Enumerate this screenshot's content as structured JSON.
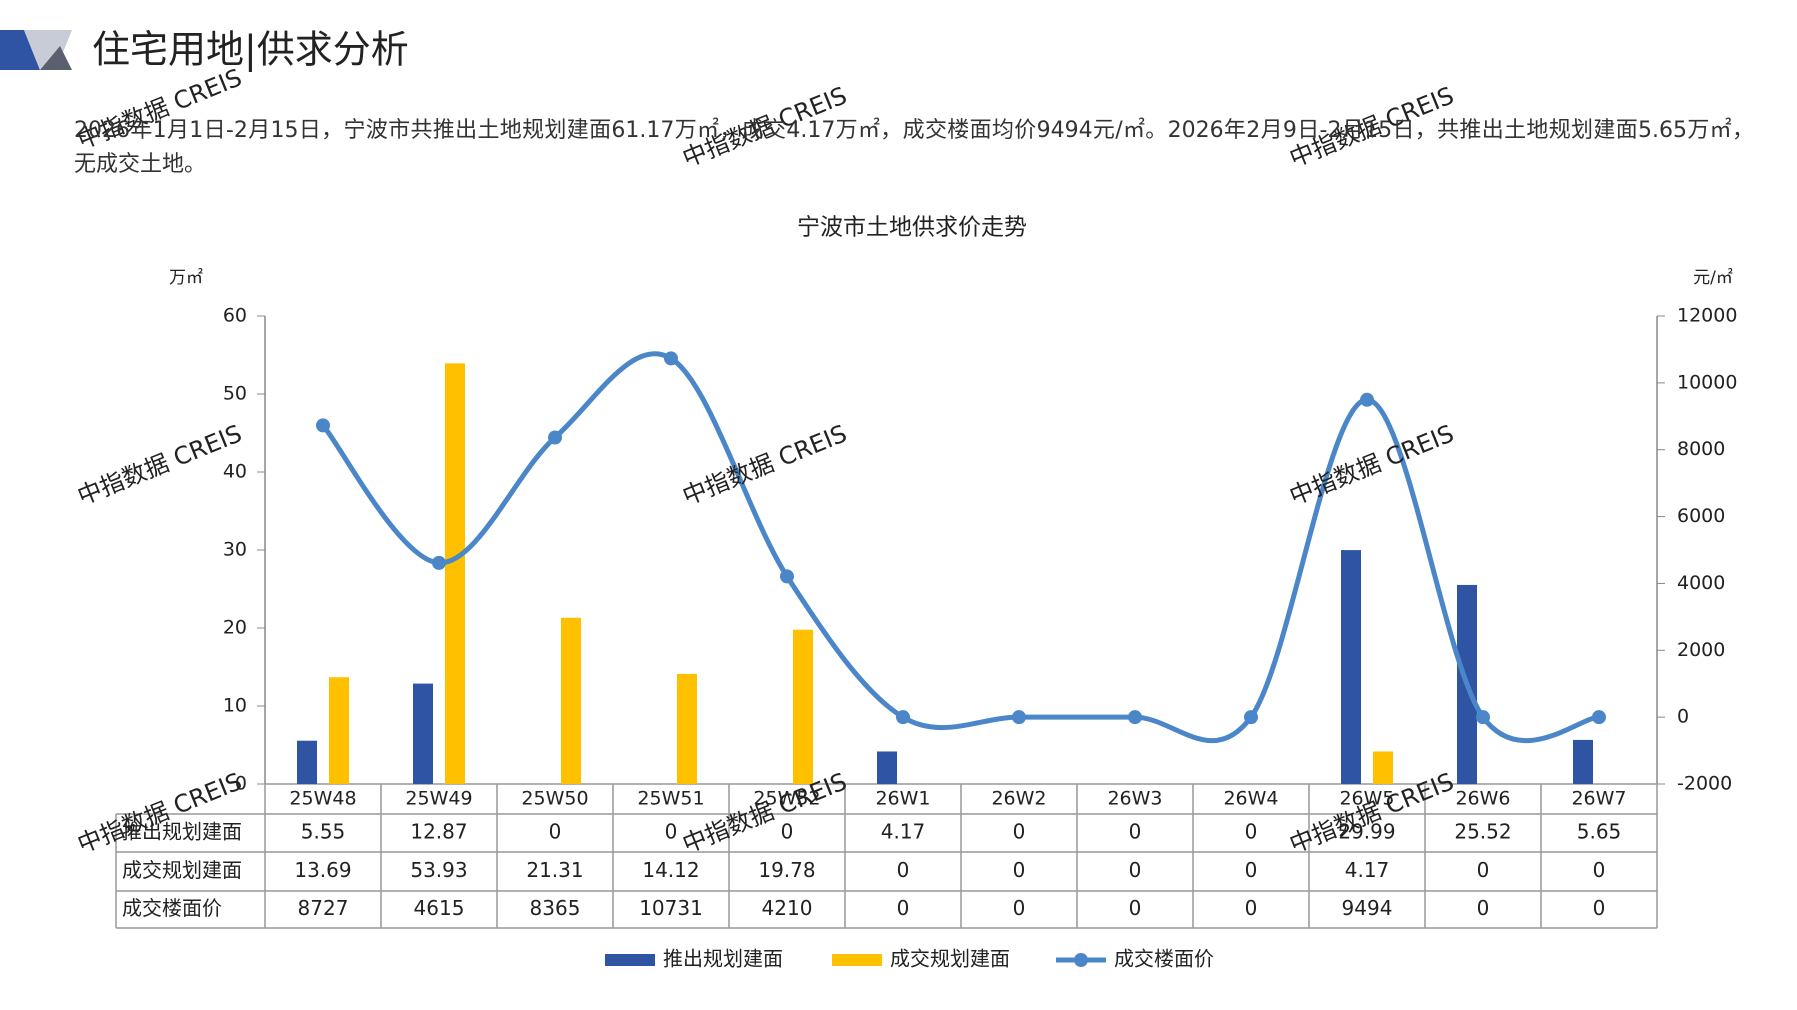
{
  "header": {
    "title": "住宅用地|供求分析",
    "summary": "2026年1月1日-2月15日，宁波市共推出土地规划建面61.17万㎡，成交4.17万㎡，成交楼面均价9494元/㎡。2026年2月9日-2月15日，共推出土地规划建面5.65万㎡，无成交土地。"
  },
  "watermark": "中指数据 CREIS",
  "chart_data": {
    "type": "combo",
    "title": "宁波市土地供求价走势",
    "y_label": "万㎡",
    "y2_label": "元/㎡",
    "categories": [
      "25W48",
      "25W49",
      "25W50",
      "25W51",
      "25W52",
      "26W1",
      "26W2",
      "26W3",
      "26W4",
      "26W5",
      "26W6",
      "26W7"
    ],
    "series": [
      {
        "name": "推出规划建面",
        "type": "bar",
        "color": "#2e54a3",
        "values": [
          5.55,
          12.87,
          0,
          0,
          0,
          4.17,
          0,
          0,
          0,
          29.99,
          25.52,
          5.65
        ]
      },
      {
        "name": "成交规划建面",
        "type": "bar",
        "color": "#ffc000",
        "values": [
          13.69,
          53.93,
          21.31,
          14.12,
          19.78,
          0,
          0,
          0,
          0,
          4.17,
          0,
          0
        ]
      },
      {
        "name": "成交楼面价",
        "type": "line",
        "axis": "y2",
        "color": "#4a86c8",
        "values": [
          8727,
          4615,
          8365,
          10731,
          4210,
          0,
          0,
          0,
          0,
          9494,
          0,
          0
        ]
      }
    ],
    "ylim": [
      0,
      60
    ],
    "yticks": [
      0,
      10,
      20,
      30,
      40,
      50,
      60
    ],
    "y2lim": [
      -2000,
      12000
    ],
    "y2ticks": [
      -2000,
      0,
      2000,
      4000,
      6000,
      8000,
      10000,
      12000
    ],
    "data_table": true,
    "legend": "bottom"
  }
}
